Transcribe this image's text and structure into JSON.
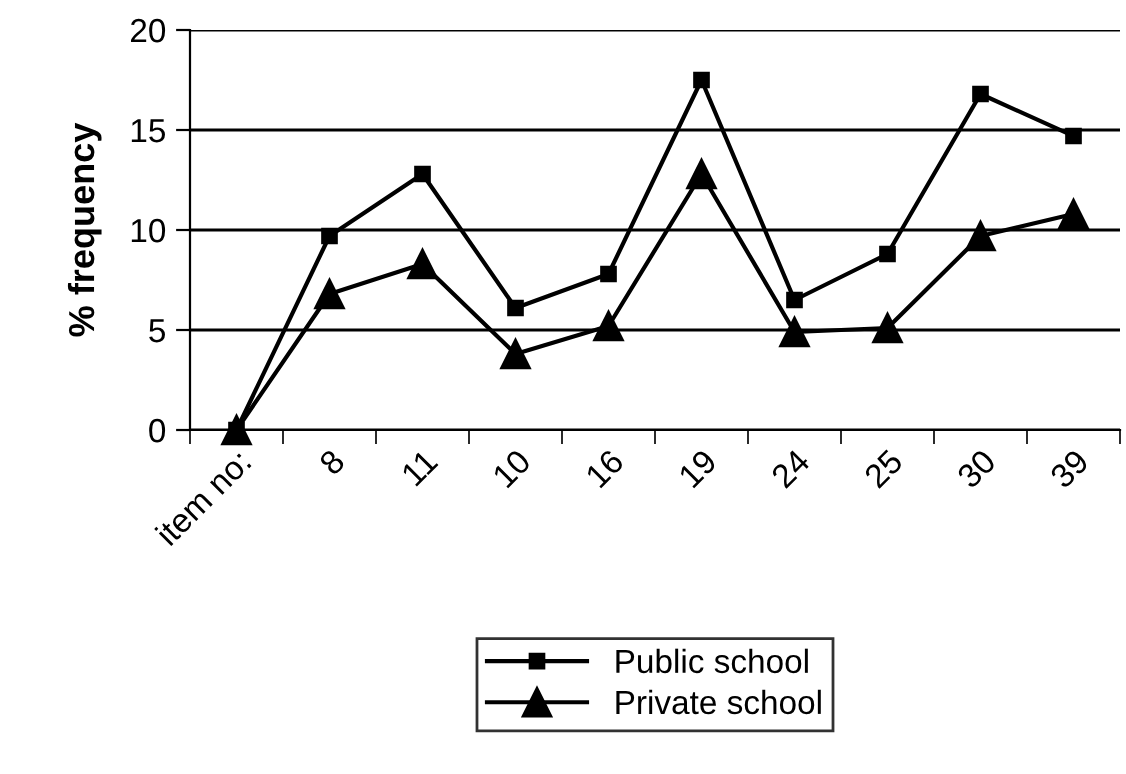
{
  "chart_data": {
    "type": "line",
    "ylabel": "% frequency",
    "xlabel": "item no:",
    "categories": [
      null,
      "8",
      "11",
      "10",
      "16",
      "19",
      "24",
      "25",
      "30",
      "39"
    ],
    "series": [
      {
        "name": "Public school",
        "color": "#000000",
        "marker": "square",
        "values": [
          0,
          9.7,
          12.8,
          6.1,
          7.8,
          17.5,
          6.5,
          8.8,
          16.8,
          14.7
        ]
      },
      {
        "name": "Private school",
        "color": "#000000",
        "marker": "triangle",
        "values": [
          0,
          6.8,
          8.3,
          3.8,
          5.2,
          12.8,
          4.9,
          5.1,
          9.7,
          10.8
        ]
      }
    ],
    "ylim": [
      0,
      20
    ],
    "yticks": [
      0,
      5,
      10,
      15,
      20
    ],
    "grid": "y",
    "legend": "bottom",
    "line_style": "solid"
  }
}
